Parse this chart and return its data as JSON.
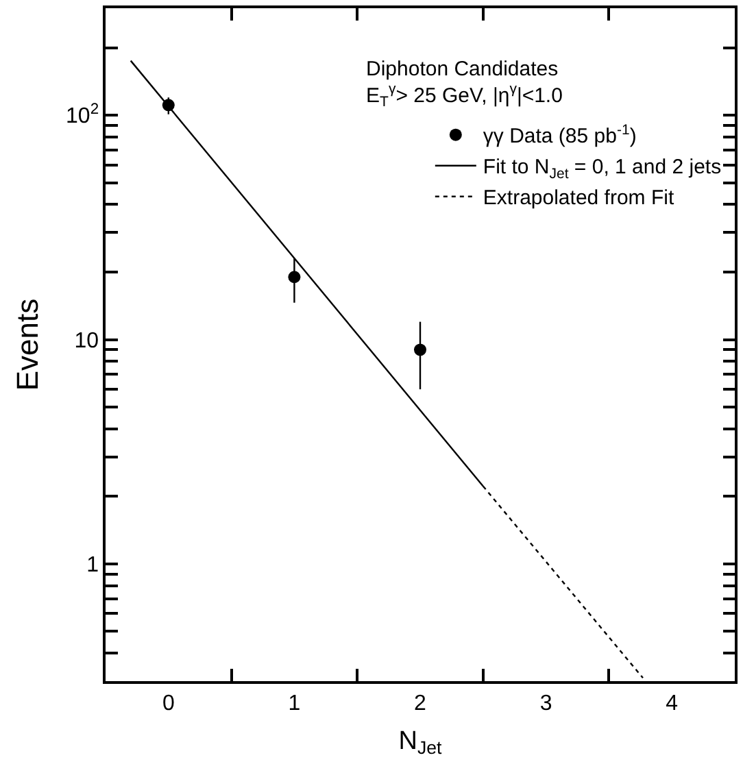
{
  "chart_data": {
    "type": "scatter",
    "xlabel": "N$_{Jet}$",
    "ylabel": "Events",
    "legend_title": "Diphoton Candidates\nE$_{T}$$^{γ}$> 25 GeV, |η$^{γ}$|<1.0",
    "x": [
      0,
      1,
      2
    ],
    "series": [
      {
        "name": "γγ Data (85 pb$^{-1}$)",
        "color": "#000000",
        "marker": "circle",
        "values": [
          111,
          19,
          9
        ],
        "errors": [
          [
            101,
            120
          ],
          [
            14.6,
            23
          ],
          [
            6,
            12
          ]
        ]
      },
      {
        "name": "Fit to N$_{Jet}$ = 0, 1 and 2 jets",
        "type": "line",
        "color": "#000000",
        "marker": "none",
        "line_style": "solid",
        "x": [
          -0.3,
          2.5
        ],
        "values": [
          175,
          2.22
        ]
      },
      {
        "name": "Extrapolated from Fit",
        "type": "line",
        "color": "#000000",
        "marker": "none",
        "line_style": "dotted",
        "x": [
          2.5,
          3.77
        ],
        "values": [
          2.22,
          0.31
        ]
      }
    ],
    "log": "y",
    "xlim": [
      -0.5,
      4.5
    ],
    "ylim": [
      0.3,
      300
    ],
    "xticks": [
      0,
      1,
      2,
      3,
      4,
      {
        "value": 0.5,
        "label": null
      },
      {
        "value": 1.5,
        "label": null
      },
      {
        "value": 2.5,
        "label": null
      },
      {
        "value": 3.5,
        "label": null
      }
    ],
    "yticks": [
      1,
      10,
      {
        "value": 100,
        "label": "10$^{2}$"
      }
    ],
    "legend": "top right"
  }
}
